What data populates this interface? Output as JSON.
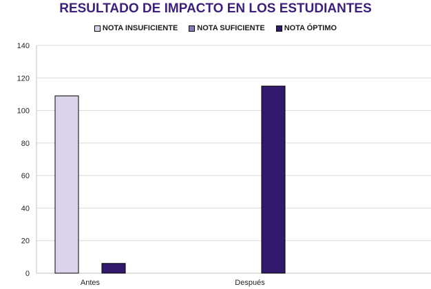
{
  "chart_data": {
    "type": "bar",
    "title": "RESULTADO DE IMPACTO EN LOS ESTUDIANTES",
    "categories": [
      "Antes",
      "Después"
    ],
    "series": [
      {
        "name": "NOTA INSUFICIENTE",
        "values": [
          109,
          0
        ],
        "color": "#dbd3ea"
      },
      {
        "name": "NOTA SUFICIENTE",
        "values": [
          0,
          0
        ],
        "color": "#8a7ab8"
      },
      {
        "name": "NOTA ÓPTIMO",
        "values": [
          6,
          115
        ],
        "color": "#33196e"
      }
    ],
    "ylim": [
      0,
      140
    ],
    "yticks": [
      0,
      20,
      40,
      60,
      80,
      100,
      120,
      140
    ],
    "grid": true,
    "legend_position": "top"
  }
}
